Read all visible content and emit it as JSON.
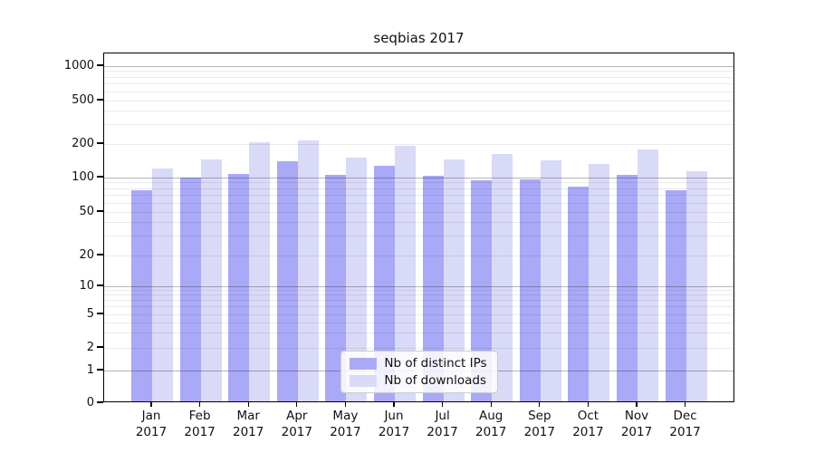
{
  "figure": {
    "title": "seqbias 2017",
    "background": "#ffffff"
  },
  "chart_data": {
    "type": "bar",
    "title": "seqbias 2017",
    "xlabel": "",
    "ylabel": "",
    "yscale": "symlog",
    "ylim": [
      0,
      1000
    ],
    "grid": true,
    "categories": [
      "Jan 2017",
      "Feb 2017",
      "Mar 2017",
      "Apr 2017",
      "May 2017",
      "Jun 2017",
      "Jul 2017",
      "Aug 2017",
      "Sep 2017",
      "Oct 2017",
      "Nov 2017",
      "Dec 2017"
    ],
    "series": [
      {
        "name": "Nb of distinct IPs",
        "color": "#a9a9f7",
        "values": [
          78,
          100,
          107,
          139,
          106,
          128,
          104,
          95,
          97,
          84,
          105,
          78
        ]
      },
      {
        "name": "Nb of downloads",
        "color": "#d9d9f8",
        "values": [
          121,
          146,
          209,
          216,
          152,
          194,
          146,
          163,
          144,
          133,
          180,
          115
        ]
      }
    ],
    "y_ticks_labeled": [
      0,
      1,
      2,
      5,
      10,
      20,
      50,
      100,
      200,
      500,
      1000
    ],
    "y_major_gridlines": [
      1,
      10,
      100,
      1000
    ],
    "y_minor_gridlines": [
      2,
      3,
      4,
      5,
      6,
      7,
      8,
      9,
      20,
      30,
      40,
      50,
      60,
      70,
      80,
      90,
      200,
      300,
      400,
      500,
      600,
      700,
      800,
      900
    ],
    "legend": {
      "position": "lower center",
      "entries": [
        "Nb of distinct IPs",
        "Nb of downloads"
      ]
    }
  }
}
